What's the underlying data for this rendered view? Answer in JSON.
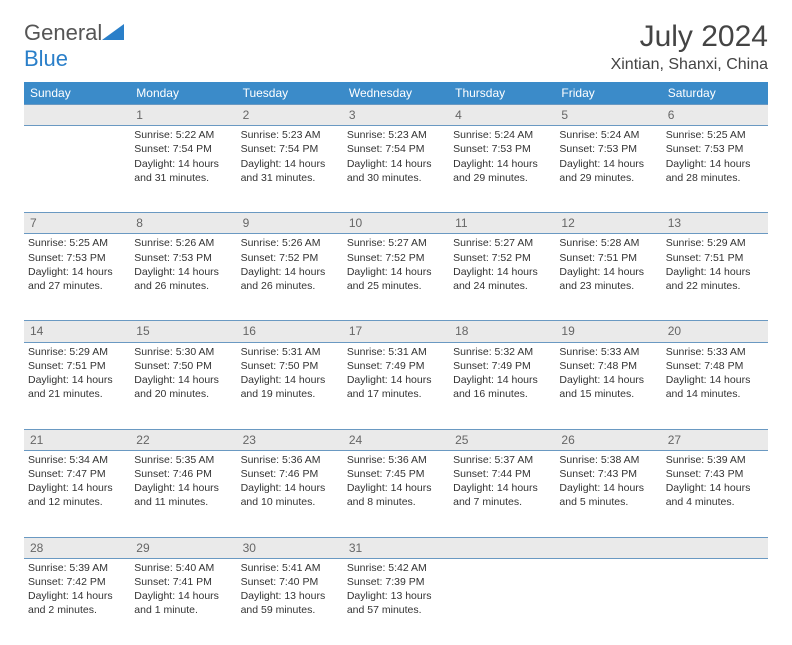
{
  "logo": {
    "text1": "General",
    "text2": "Blue"
  },
  "title": "July 2024",
  "location": "Xintian, Shanxi, China",
  "colors": {
    "header_bg": "#3b8bc9",
    "header_text": "#ffffff",
    "daynum_bg": "#eaeaea",
    "daynum_text": "#666666",
    "border": "#6a99c2",
    "body_text": "#333333",
    "logo_gray": "#555555",
    "logo_blue": "#2a7fc9"
  },
  "day_headers": [
    "Sunday",
    "Monday",
    "Tuesday",
    "Wednesday",
    "Thursday",
    "Friday",
    "Saturday"
  ],
  "weeks": [
    {
      "nums": [
        "",
        "1",
        "2",
        "3",
        "4",
        "5",
        "6"
      ],
      "cells": [
        null,
        {
          "sunrise": "5:22 AM",
          "sunset": "7:54 PM",
          "daylight": "14 hours and 31 minutes."
        },
        {
          "sunrise": "5:23 AM",
          "sunset": "7:54 PM",
          "daylight": "14 hours and 31 minutes."
        },
        {
          "sunrise": "5:23 AM",
          "sunset": "7:54 PM",
          "daylight": "14 hours and 30 minutes."
        },
        {
          "sunrise": "5:24 AM",
          "sunset": "7:53 PM",
          "daylight": "14 hours and 29 minutes."
        },
        {
          "sunrise": "5:24 AM",
          "sunset": "7:53 PM",
          "daylight": "14 hours and 29 minutes."
        },
        {
          "sunrise": "5:25 AM",
          "sunset": "7:53 PM",
          "daylight": "14 hours and 28 minutes."
        }
      ]
    },
    {
      "nums": [
        "7",
        "8",
        "9",
        "10",
        "11",
        "12",
        "13"
      ],
      "cells": [
        {
          "sunrise": "5:25 AM",
          "sunset": "7:53 PM",
          "daylight": "14 hours and 27 minutes."
        },
        {
          "sunrise": "5:26 AM",
          "sunset": "7:53 PM",
          "daylight": "14 hours and 26 minutes."
        },
        {
          "sunrise": "5:26 AM",
          "sunset": "7:52 PM",
          "daylight": "14 hours and 26 minutes."
        },
        {
          "sunrise": "5:27 AM",
          "sunset": "7:52 PM",
          "daylight": "14 hours and 25 minutes."
        },
        {
          "sunrise": "5:27 AM",
          "sunset": "7:52 PM",
          "daylight": "14 hours and 24 minutes."
        },
        {
          "sunrise": "5:28 AM",
          "sunset": "7:51 PM",
          "daylight": "14 hours and 23 minutes."
        },
        {
          "sunrise": "5:29 AM",
          "sunset": "7:51 PM",
          "daylight": "14 hours and 22 minutes."
        }
      ]
    },
    {
      "nums": [
        "14",
        "15",
        "16",
        "17",
        "18",
        "19",
        "20"
      ],
      "cells": [
        {
          "sunrise": "5:29 AM",
          "sunset": "7:51 PM",
          "daylight": "14 hours and 21 minutes."
        },
        {
          "sunrise": "5:30 AM",
          "sunset": "7:50 PM",
          "daylight": "14 hours and 20 minutes."
        },
        {
          "sunrise": "5:31 AM",
          "sunset": "7:50 PM",
          "daylight": "14 hours and 19 minutes."
        },
        {
          "sunrise": "5:31 AM",
          "sunset": "7:49 PM",
          "daylight": "14 hours and 17 minutes."
        },
        {
          "sunrise": "5:32 AM",
          "sunset": "7:49 PM",
          "daylight": "14 hours and 16 minutes."
        },
        {
          "sunrise": "5:33 AM",
          "sunset": "7:48 PM",
          "daylight": "14 hours and 15 minutes."
        },
        {
          "sunrise": "5:33 AM",
          "sunset": "7:48 PM",
          "daylight": "14 hours and 14 minutes."
        }
      ]
    },
    {
      "nums": [
        "21",
        "22",
        "23",
        "24",
        "25",
        "26",
        "27"
      ],
      "cells": [
        {
          "sunrise": "5:34 AM",
          "sunset": "7:47 PM",
          "daylight": "14 hours and 12 minutes."
        },
        {
          "sunrise": "5:35 AM",
          "sunset": "7:46 PM",
          "daylight": "14 hours and 11 minutes."
        },
        {
          "sunrise": "5:36 AM",
          "sunset": "7:46 PM",
          "daylight": "14 hours and 10 minutes."
        },
        {
          "sunrise": "5:36 AM",
          "sunset": "7:45 PM",
          "daylight": "14 hours and 8 minutes."
        },
        {
          "sunrise": "5:37 AM",
          "sunset": "7:44 PM",
          "daylight": "14 hours and 7 minutes."
        },
        {
          "sunrise": "5:38 AM",
          "sunset": "7:43 PM",
          "daylight": "14 hours and 5 minutes."
        },
        {
          "sunrise": "5:39 AM",
          "sunset": "7:43 PM",
          "daylight": "14 hours and 4 minutes."
        }
      ]
    },
    {
      "nums": [
        "28",
        "29",
        "30",
        "31",
        "",
        "",
        ""
      ],
      "cells": [
        {
          "sunrise": "5:39 AM",
          "sunset": "7:42 PM",
          "daylight": "14 hours and 2 minutes."
        },
        {
          "sunrise": "5:40 AM",
          "sunset": "7:41 PM",
          "daylight": "14 hours and 1 minute."
        },
        {
          "sunrise": "5:41 AM",
          "sunset": "7:40 PM",
          "daylight": "13 hours and 59 minutes."
        },
        {
          "sunrise": "5:42 AM",
          "sunset": "7:39 PM",
          "daylight": "13 hours and 57 minutes."
        },
        null,
        null,
        null
      ]
    }
  ],
  "labels": {
    "sunrise": "Sunrise:",
    "sunset": "Sunset:",
    "daylight": "Daylight:"
  }
}
